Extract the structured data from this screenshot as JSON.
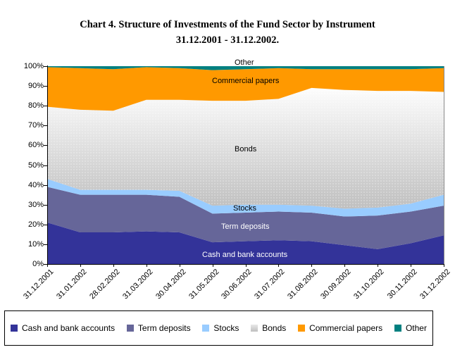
{
  "title": {
    "line1": "Chart 4. Structure of Investments of the Fund Sector by Instrument",
    "line2": "31.12.2001 - 31.12.2002."
  },
  "chart_data": {
    "type": "area",
    "stacked": true,
    "unit": "percent",
    "title": "Chart 4. Structure of Investments of the Fund Sector by Instrument 31.12.2001 - 31.12.2002.",
    "x": [
      "31.12.2001",
      "31.01.2002",
      "28.02.2002",
      "31.03.2002",
      "30.04.2002",
      "31.05.2002",
      "30.06.2002",
      "31.07.2002",
      "31.08.2002",
      "30.09.2002",
      "31.10.2002",
      "30.11.2002",
      "31.12.2002"
    ],
    "series": [
      {
        "name": "Cash and bank accounts",
        "color": "#333399",
        "values": [
          21,
          16,
          16,
          16.5,
          16,
          11,
          11.5,
          12,
          11.5,
          9.5,
          7.5,
          10.5,
          14.5
        ]
      },
      {
        "name": "Term deposits",
        "color": "#666699",
        "values": [
          18,
          19,
          19,
          18.5,
          18,
          14.5,
          14.5,
          14.5,
          14.5,
          14.5,
          17,
          16,
          15
        ]
      },
      {
        "name": "Stocks",
        "color": "#99CCFF",
        "values": [
          4,
          2.5,
          2.5,
          2.5,
          3,
          4,
          4,
          3.5,
          3.5,
          4,
          4,
          4,
          5.5
        ]
      },
      {
        "name": "Bonds",
        "color": "#C9C9C9",
        "gradient": [
          "#FDFDFD",
          "#BFBFBF"
        ],
        "values": [
          36.5,
          40.5,
          40,
          45.5,
          46,
          53,
          52.5,
          53.5,
          59.5,
          60,
          59,
          57,
          52
        ]
      },
      {
        "name": "Commercial papers",
        "color": "#FF9900",
        "values": [
          20,
          21,
          21,
          16.5,
          16,
          15.5,
          16,
          15.5,
          9.5,
          10.5,
          11,
          11,
          12
        ]
      },
      {
        "name": "Other",
        "color": "#008080",
        "values": [
          0.5,
          1,
          1.5,
          0.5,
          1,
          2,
          1.5,
          1,
          1.5,
          1.5,
          1.5,
          1.5,
          1
        ]
      }
    ],
    "ylim": [
      0,
      100
    ],
    "y_ticks": [
      "0%",
      "10%",
      "20%",
      "30%",
      "40%",
      "50%",
      "60%",
      "70%",
      "80%",
      "90%",
      "100%"
    ],
    "grid": false,
    "legend_position": "bottom"
  }
}
